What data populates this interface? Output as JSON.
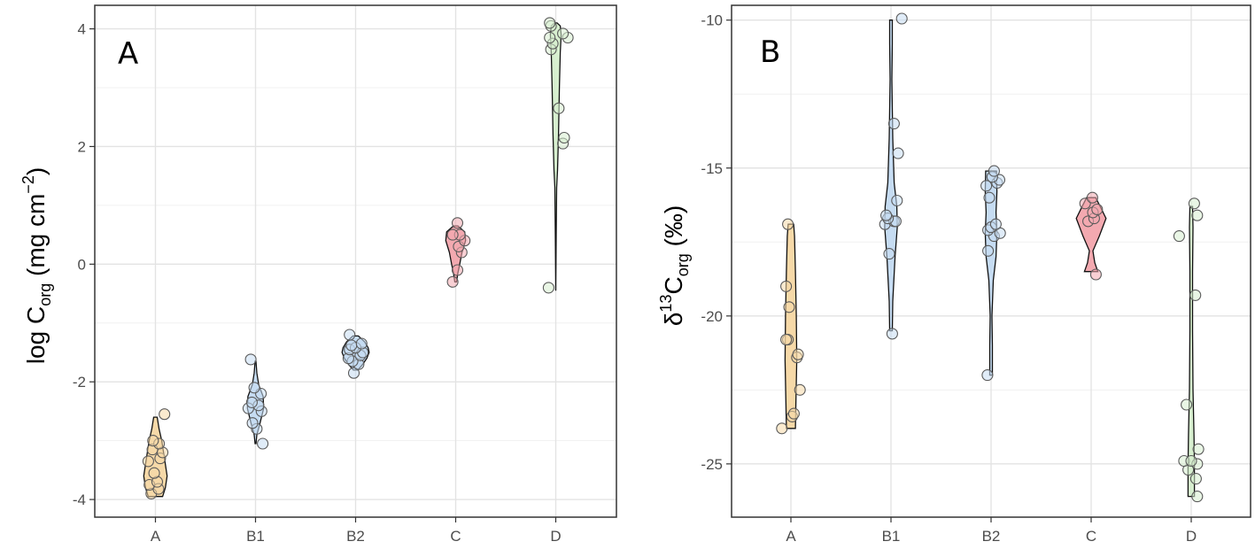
{
  "chart_data": [
    {
      "type": "violin",
      "panel_label": "A",
      "ylabel": {
        "main": "log C",
        "sub": "org",
        "unit_open": " (mg cm",
        "sup": "−2",
        "unit_close": ")"
      },
      "categories": [
        "A",
        "B1",
        "B2",
        "C",
        "D"
      ],
      "colors": [
        "#f6d9a8",
        "#c6dcf2",
        "#c6dcf2",
        "#f3a9b0",
        "#d7efcf"
      ],
      "ylim": [
        -4.3,
        4.4
      ],
      "y_ticks": [
        -4,
        -2,
        0,
        2,
        4
      ],
      "y_tick_labels": [
        "-4",
        "-2",
        "0",
        "2",
        "4"
      ],
      "grid": true,
      "series": [
        {
          "name": "A",
          "min": -3.95,
          "max": -2.6,
          "profile": [
            [
              -3.95,
              0.16
            ],
            [
              -3.8,
              0.22
            ],
            [
              -3.6,
              0.26
            ],
            [
              -3.3,
              0.2
            ],
            [
              -3.0,
              0.14
            ],
            [
              -2.8,
              0.08
            ],
            [
              -2.6,
              0.04
            ]
          ],
          "points": [
            [
              -0.07,
              -3.9
            ],
            [
              0.05,
              -3.82
            ],
            [
              -0.1,
              -3.75
            ],
            [
              0.03,
              -3.7
            ],
            [
              -0.02,
              -3.55
            ],
            [
              -0.12,
              -3.35
            ],
            [
              0.08,
              -3.3
            ],
            [
              0.12,
              -3.2
            ],
            [
              -0.05,
              -3.15
            ],
            [
              0.06,
              -3.05
            ],
            [
              -0.04,
              -3.0
            ],
            [
              0.15,
              -2.55
            ]
          ]
        },
        {
          "name": "B1",
          "min": -3.05,
          "max": -1.65,
          "profile": [
            [
              -3.05,
              0.01
            ],
            [
              -2.9,
              0.03
            ],
            [
              -2.7,
              0.1
            ],
            [
              -2.45,
              0.18
            ],
            [
              -2.25,
              0.17
            ],
            [
              -2.05,
              0.07
            ],
            [
              -1.85,
              0.03
            ],
            [
              -1.65,
              0.01
            ]
          ],
          "points": [
            [
              0.12,
              -3.05
            ],
            [
              0.02,
              -2.8
            ],
            [
              -0.05,
              -2.7
            ],
            [
              0.1,
              -2.5
            ],
            [
              -0.12,
              -2.45
            ],
            [
              0.05,
              -2.4
            ],
            [
              -0.06,
              -2.35
            ],
            [
              0.09,
              -2.2
            ],
            [
              -0.02,
              -2.1
            ],
            [
              -0.08,
              -1.62
            ]
          ]
        },
        {
          "name": "B2",
          "min": -1.8,
          "max": -1.22,
          "profile": [
            [
              -1.8,
              0.05
            ],
            [
              -1.7,
              0.16
            ],
            [
              -1.6,
              0.25
            ],
            [
              -1.5,
              0.3
            ],
            [
              -1.42,
              0.28
            ],
            [
              -1.32,
              0.2
            ],
            [
              -1.22,
              0.06
            ]
          ],
          "points": [
            [
              -0.03,
              -1.85
            ],
            [
              0.05,
              -1.7
            ],
            [
              -0.05,
              -1.65
            ],
            [
              -0.12,
              -1.6
            ],
            [
              0.08,
              -1.55
            ],
            [
              0.12,
              -1.5
            ],
            [
              -0.1,
              -1.45
            ],
            [
              0.0,
              -1.42
            ],
            [
              -0.07,
              -1.38
            ],
            [
              0.1,
              -1.35
            ],
            [
              -0.1,
              -1.2
            ]
          ]
        },
        {
          "name": "C",
          "min": -0.3,
          "max": 0.65,
          "profile": [
            [
              -0.3,
              0.02
            ],
            [
              -0.15,
              0.05
            ],
            [
              0.0,
              0.09
            ],
            [
              0.2,
              0.14
            ],
            [
              0.4,
              0.22
            ],
            [
              0.55,
              0.2
            ],
            [
              0.65,
              0.05
            ]
          ],
          "points": [
            [
              -0.05,
              -0.3
            ],
            [
              0.03,
              -0.1
            ],
            [
              0.1,
              0.2
            ],
            [
              0.05,
              0.3
            ],
            [
              0.15,
              0.4
            ],
            [
              0.07,
              0.5
            ],
            [
              -0.05,
              0.5
            ],
            [
              0.03,
              0.7
            ]
          ]
        },
        {
          "name": "D",
          "min": -0.45,
          "max": 4.1,
          "profile": [
            [
              -0.45,
              0.0
            ],
            [
              0.5,
              0.01
            ],
            [
              1.3,
              0.02
            ],
            [
              1.6,
              0.04
            ],
            [
              2.2,
              0.06
            ],
            [
              3.0,
              0.08
            ],
            [
              3.6,
              0.1
            ],
            [
              3.9,
              0.12
            ],
            [
              4.05,
              0.1
            ],
            [
              4.1,
              0.03
            ]
          ],
          "points": [
            [
              -0.12,
              -0.4
            ],
            [
              0.12,
              2.05
            ],
            [
              0.14,
              2.15
            ],
            [
              0.05,
              2.65
            ],
            [
              -0.08,
              3.65
            ],
            [
              -0.05,
              3.75
            ],
            [
              -0.1,
              3.85
            ],
            [
              0.2,
              3.85
            ],
            [
              0.12,
              3.92
            ],
            [
              -0.08,
              4.05
            ],
            [
              -0.1,
              4.1
            ]
          ]
        }
      ]
    },
    {
      "type": "violin",
      "panel_label": "B",
      "ylabel": {
        "main": "δ",
        "sup": "13",
        "main2": "C",
        "sub": "org",
        "unit": " (‰)"
      },
      "categories": [
        "A",
        "B1",
        "B2",
        "C",
        "D"
      ],
      "colors": [
        "#f6d9a8",
        "#c6dcf2",
        "#c6dcf2",
        "#f3a9b0",
        "#d7efcf"
      ],
      "ylim": [
        -26.8,
        -9.5
      ],
      "y_ticks": [
        -25,
        -20,
        -15,
        -10
      ],
      "y_tick_labels": [
        "-25",
        "-20",
        "-15",
        "-10"
      ],
      "grid": true,
      "series": [
        {
          "name": "A",
          "min": -23.8,
          "max": -16.9,
          "profile": [
            [
              -23.8,
              0.1
            ],
            [
              -23.0,
              0.11
            ],
            [
              -21.5,
              0.13
            ],
            [
              -20.0,
              0.12
            ],
            [
              -18.5,
              0.1
            ],
            [
              -17.3,
              0.08
            ],
            [
              -16.9,
              0.06
            ]
          ],
          "points": [
            [
              -0.15,
              -23.8
            ],
            [
              0.02,
              -23.4
            ],
            [
              0.05,
              -23.3
            ],
            [
              0.15,
              -22.5
            ],
            [
              0.1,
              -21.4
            ],
            [
              0.12,
              -21.3
            ],
            [
              -0.05,
              -20.8
            ],
            [
              -0.08,
              -20.8
            ],
            [
              -0.03,
              -19.7
            ],
            [
              -0.08,
              -19.0
            ],
            [
              -0.05,
              -16.9
            ]
          ]
        },
        {
          "name": "B1",
          "min": -20.5,
          "max": -10.0,
          "profile": [
            [
              -20.5,
              0.03
            ],
            [
              -19.5,
              0.04
            ],
            [
              -18.0,
              0.09
            ],
            [
              -17.0,
              0.14
            ],
            [
              -16.3,
              0.13
            ],
            [
              -15.5,
              0.07
            ],
            [
              -14.0,
              0.04
            ],
            [
              -12.0,
              0.02
            ],
            [
              -10.8,
              0.03
            ],
            [
              -10.0,
              0.03
            ]
          ],
          "points": [
            [
              0.02,
              -20.6
            ],
            [
              -0.03,
              -17.9
            ],
            [
              -0.1,
              -16.9
            ],
            [
              0.05,
              -16.8
            ],
            [
              0.08,
              -16.8
            ],
            [
              -0.05,
              -16.7
            ],
            [
              -0.08,
              -16.6
            ],
            [
              0.1,
              -16.1
            ],
            [
              0.12,
              -14.5
            ],
            [
              0.05,
              -13.5
            ],
            [
              0.18,
              -9.95
            ]
          ]
        },
        {
          "name": "B2",
          "min": -22.0,
          "max": -15.1,
          "profile": [
            [
              -22.0,
              0.03
            ],
            [
              -21.0,
              0.03
            ],
            [
              -20.0,
              0.02
            ],
            [
              -18.8,
              0.05
            ],
            [
              -18.0,
              0.11
            ],
            [
              -17.2,
              0.13
            ],
            [
              -16.5,
              0.11
            ],
            [
              -15.8,
              0.13
            ],
            [
              -15.1,
              0.12
            ]
          ],
          "points": [
            [
              -0.06,
              -22.0
            ],
            [
              -0.05,
              -17.8
            ],
            [
              0.05,
              -17.3
            ],
            [
              0.15,
              -17.2
            ],
            [
              -0.05,
              -17.1
            ],
            [
              0.0,
              -17.0
            ],
            [
              0.08,
              -16.9
            ],
            [
              -0.03,
              -16.0
            ],
            [
              -0.08,
              -15.6
            ],
            [
              0.1,
              -15.5
            ],
            [
              0.14,
              -15.4
            ],
            [
              0.02,
              -15.3
            ],
            [
              0.05,
              -15.1
            ]
          ]
        },
        {
          "name": "C",
          "min": -18.5,
          "max": -16.0,
          "profile": [
            [
              -18.5,
              0.15
            ],
            [
              -18.2,
              0.08
            ],
            [
              -17.8,
              0.04
            ],
            [
              -17.3,
              0.18
            ],
            [
              -16.7,
              0.33
            ],
            [
              -16.3,
              0.2
            ],
            [
              -16.0,
              0.1
            ]
          ],
          "points": [
            [
              0.08,
              -18.6
            ],
            [
              -0.05,
              -16.8
            ],
            [
              0.05,
              -16.7
            ],
            [
              0.03,
              -16.5
            ],
            [
              0.1,
              -16.4
            ],
            [
              -0.1,
              -16.2
            ],
            [
              0.02,
              -16.0
            ]
          ]
        },
        {
          "name": "D",
          "min": -26.1,
          "max": -16.3,
          "profile": [
            [
              -26.1,
              0.07
            ],
            [
              -25.0,
              0.07
            ],
            [
              -24.0,
              0.06
            ],
            [
              -22.5,
              0.04
            ],
            [
              -20.5,
              0.03
            ],
            [
              -18.5,
              0.03
            ],
            [
              -17.0,
              0.04
            ],
            [
              -16.3,
              0.03
            ]
          ],
          "points": [
            [
              0.1,
              -26.1
            ],
            [
              0.08,
              -25.5
            ],
            [
              -0.05,
              -25.2
            ],
            [
              0.1,
              -25.0
            ],
            [
              -0.12,
              -24.9
            ],
            [
              0.0,
              -24.9
            ],
            [
              0.12,
              -24.5
            ],
            [
              -0.08,
              -23.0
            ],
            [
              0.07,
              -19.3
            ],
            [
              -0.2,
              -17.3
            ],
            [
              0.1,
              -16.6
            ],
            [
              0.05,
              -16.2
            ]
          ]
        }
      ]
    }
  ]
}
